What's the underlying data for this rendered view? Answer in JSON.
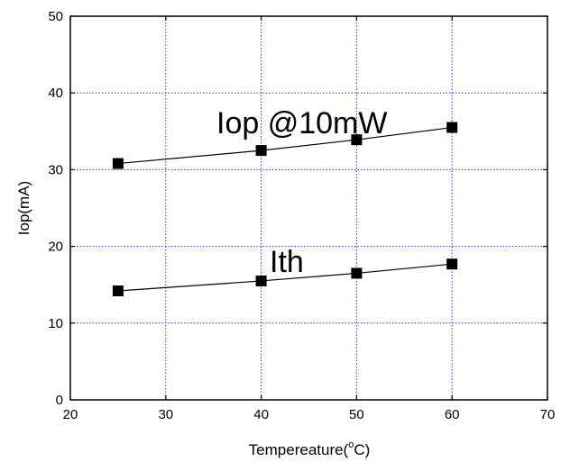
{
  "chart_data": {
    "type": "line",
    "xlabel_main": "Tempereature(",
    "xlabel_sup": "o",
    "xlabel_end": "C)",
    "ylabel": "Iop(mA)",
    "xlim": [
      20,
      70
    ],
    "ylim": [
      0,
      50
    ],
    "xticks": [
      20,
      30,
      40,
      50,
      60,
      70
    ],
    "yticks": [
      0,
      10,
      20,
      30,
      40,
      50
    ],
    "grid": true,
    "grid_style": "dotted",
    "grid_color": "#3333cc",
    "marker": "square",
    "series": [
      {
        "name": "Iop @10mW",
        "x": [
          25,
          40,
          50,
          60
        ],
        "y": [
          30.8,
          32.5,
          33.9,
          35.5
        ]
      },
      {
        "name": "Ith",
        "x": [
          25,
          40,
          50,
          60
        ],
        "y": [
          14.2,
          15.5,
          16.5,
          17.7
        ]
      }
    ]
  }
}
